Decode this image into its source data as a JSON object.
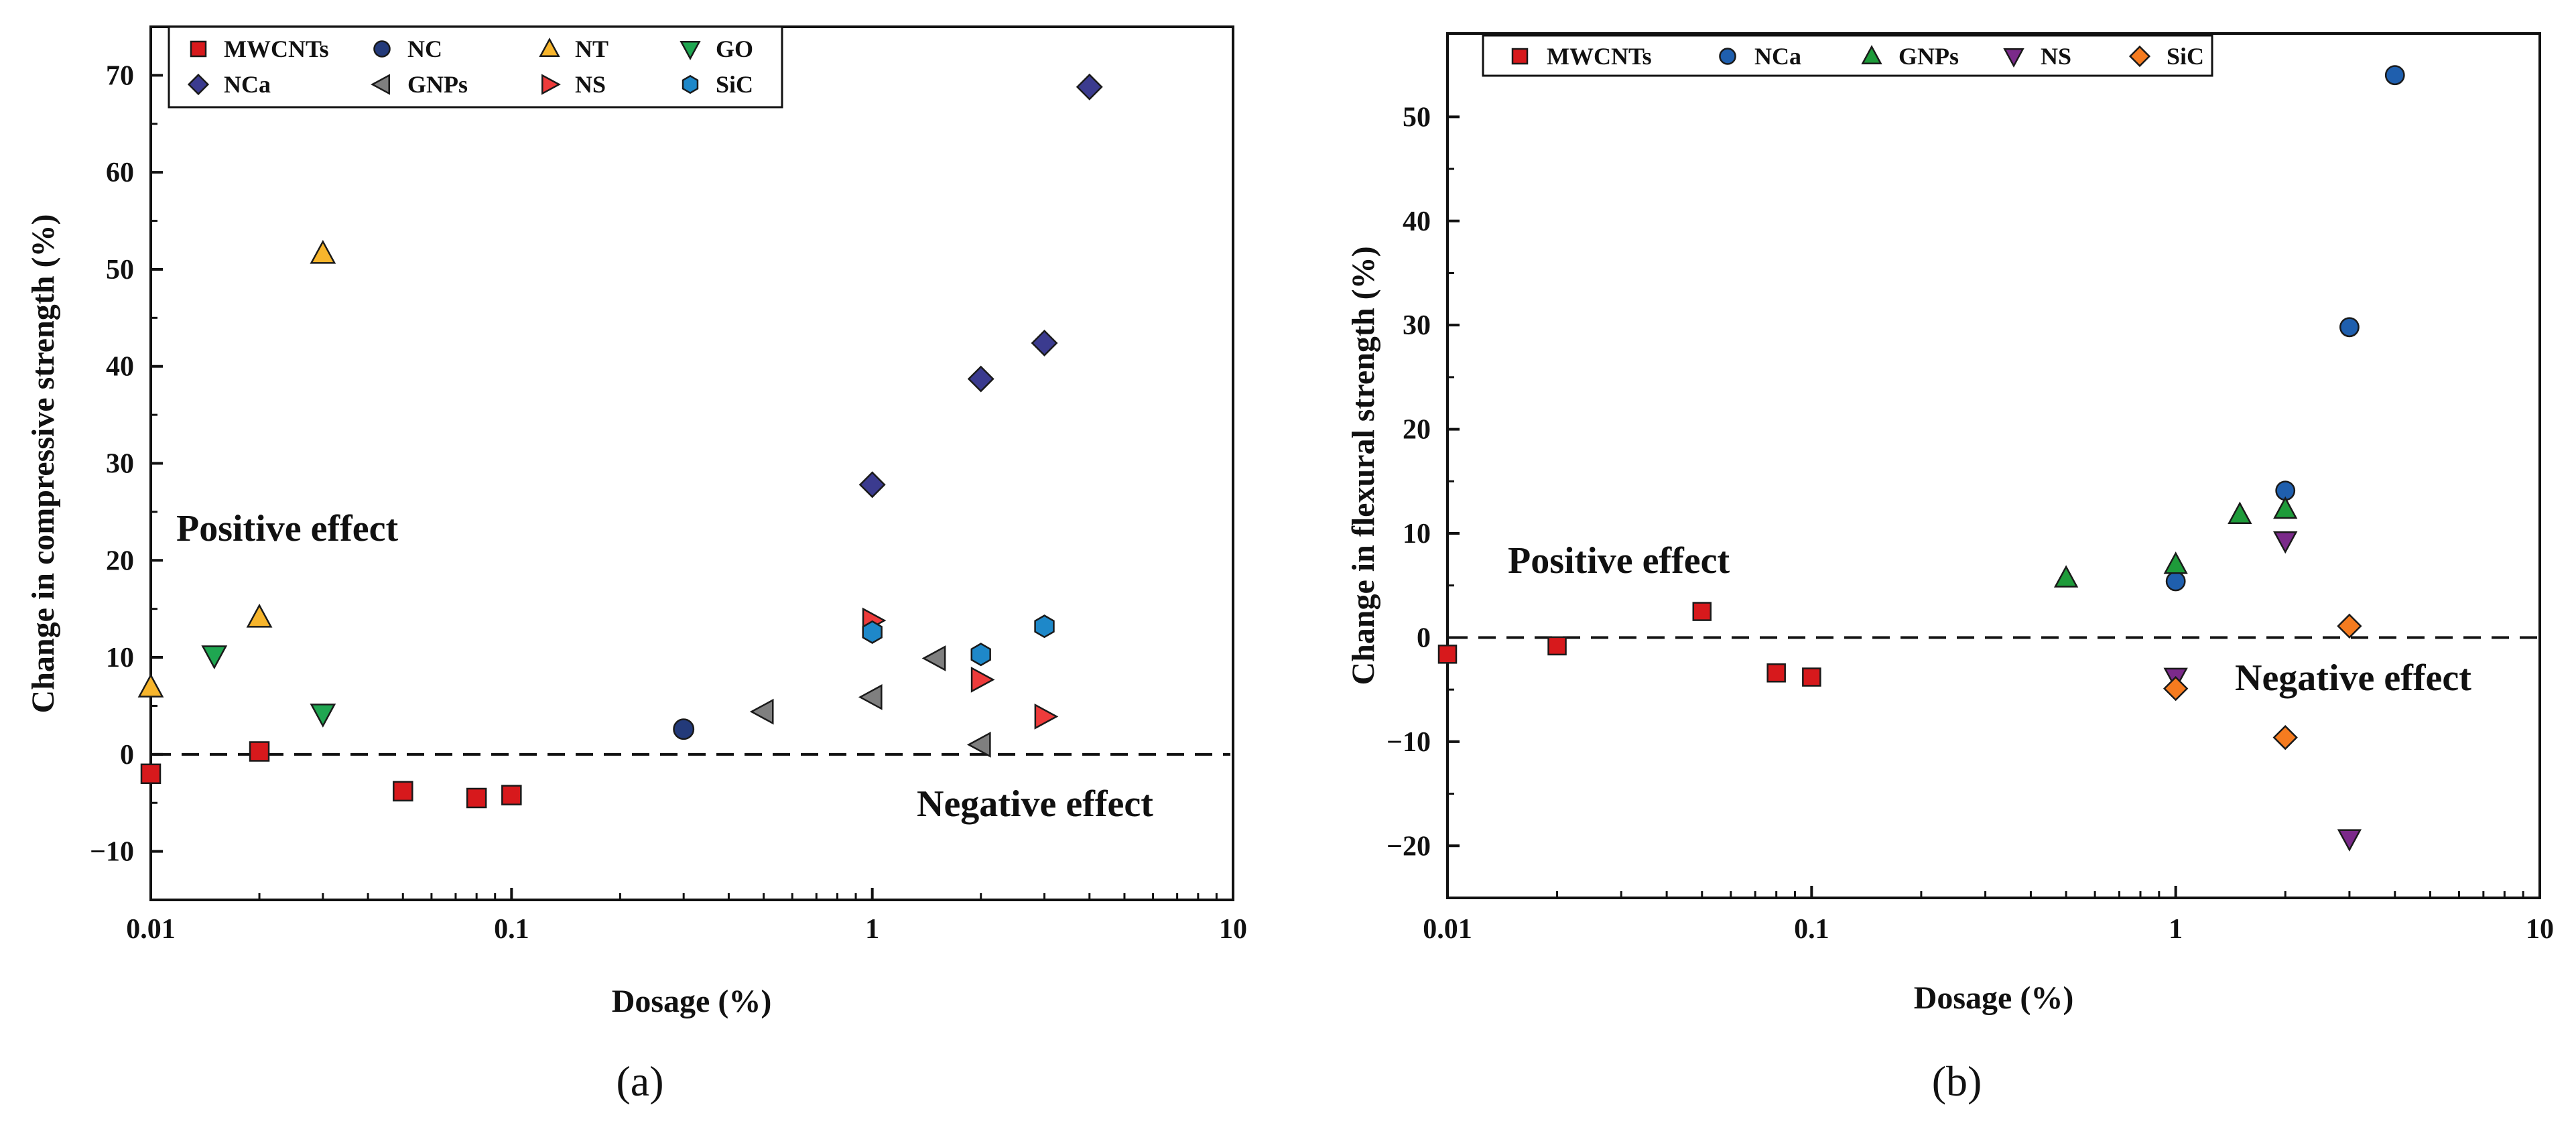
{
  "chart_data": [
    {
      "type": "scatter",
      "panel_label": "(a)",
      "xlabel": "Dosage (%)",
      "ylabel": "Change in compressive strength (%)",
      "x_scale": "log",
      "xlim": [
        0.01,
        10
      ],
      "ylim": [
        -15,
        75
      ],
      "x_ticks": [
        0.01,
        0.1,
        1,
        10
      ],
      "x_tick_labels": [
        "0.01",
        "0.1",
        "1",
        "10"
      ],
      "y_ticks": [
        -10,
        0,
        10,
        20,
        30,
        40,
        50,
        60,
        70
      ],
      "y_tick_labels": [
        "−10",
        "0",
        "10",
        "20",
        "30",
        "40",
        "50",
        "60",
        "70"
      ],
      "reference_line": 0,
      "annotations": [
        "Positive effect",
        "Negative effect"
      ],
      "legend_position": "top-left",
      "series": [
        {
          "name": "MWCNTs",
          "marker": "square",
          "color": "#d7191c",
          "x": [
            0.01,
            0.02,
            0.05,
            0.08,
            0.1
          ],
          "y": [
            -2,
            0.3,
            -3.8,
            -4.5,
            -4.2
          ]
        },
        {
          "name": "NC",
          "marker": "circle",
          "color": "#233a7a",
          "x": [
            0.3
          ],
          "y": [
            2.6
          ]
        },
        {
          "name": "NT",
          "marker": "triangle-up",
          "color": "#f7b52c",
          "x": [
            0.01,
            0.02,
            0.03
          ],
          "y": [
            6.9,
            14.1,
            51.6
          ]
        },
        {
          "name": "GO",
          "marker": "triangle-down",
          "color": "#1fa651",
          "x": [
            0.015,
            0.03
          ],
          "y": [
            10.2,
            4.2
          ]
        },
        {
          "name": "NCa",
          "marker": "diamond",
          "color": "#3b3b8f",
          "x": [
            1,
            2,
            3,
            4
          ],
          "y": [
            27.8,
            38.7,
            42.4,
            68.8
          ]
        },
        {
          "name": "GNPs",
          "marker": "triangle-left",
          "color": "#7f7f7f",
          "x": [
            0.5,
            1,
            1.5,
            2
          ],
          "y": [
            4.4,
            5.9,
            9.9,
            1
          ]
        },
        {
          "name": "NS",
          "marker": "triangle-right",
          "color": "#ee3b3b",
          "x": [
            1,
            2,
            3
          ],
          "y": [
            13.8,
            7.7,
            3.9
          ]
        },
        {
          "name": "SiC",
          "marker": "hexagon",
          "color": "#1e88c9",
          "x": [
            1,
            2,
            3
          ],
          "y": [
            12.6,
            10.3,
            13.2
          ]
        }
      ]
    },
    {
      "type": "scatter",
      "panel_label": "(b)",
      "xlabel": "Dosage (%)",
      "ylabel": "Change in flexural strength (%)",
      "x_scale": "log",
      "xlim": [
        0.01,
        10
      ],
      "ylim": [
        -25,
        58
      ],
      "x_ticks": [
        0.01,
        0.1,
        1,
        10
      ],
      "x_tick_labels": [
        "0.01",
        "0.1",
        "1",
        "10"
      ],
      "y_ticks": [
        -20,
        -10,
        0,
        10,
        20,
        30,
        40,
        50
      ],
      "y_tick_labels": [
        "−20",
        "−10",
        "0",
        "10",
        "20",
        "30",
        "40",
        "50"
      ],
      "reference_line": 0,
      "annotations": [
        "Positive effect",
        "Negative effect"
      ],
      "legend_position": "top-left",
      "series": [
        {
          "name": "MWCNTs",
          "marker": "square",
          "color": "#d7191c",
          "x": [
            0.01,
            0.02,
            0.05,
            0.08,
            0.1
          ],
          "y": [
            -1.6,
            -0.8,
            2.5,
            -3.4,
            -3.8
          ]
        },
        {
          "name": "NCa",
          "marker": "circle",
          "color": "#1f5fae",
          "x": [
            1,
            2,
            3,
            4
          ],
          "y": [
            5.4,
            14.1,
            29.8,
            54
          ]
        },
        {
          "name": "GNPs",
          "marker": "triangle-up",
          "color": "#1e9b3a",
          "x": [
            0.5,
            1,
            1.5,
            2
          ],
          "y": [
            5.7,
            7,
            11.8,
            12.3
          ]
        },
        {
          "name": "NS",
          "marker": "triangle-down",
          "color": "#7b2a8a",
          "x": [
            1,
            2,
            3
          ],
          "y": [
            -3.8,
            9.3,
            -19.3
          ]
        },
        {
          "name": "SiC",
          "marker": "diamond",
          "color": "#f57b1f",
          "x": [
            1,
            2,
            3
          ],
          "y": [
            -4.9,
            -9.6,
            1.1
          ]
        }
      ]
    }
  ]
}
